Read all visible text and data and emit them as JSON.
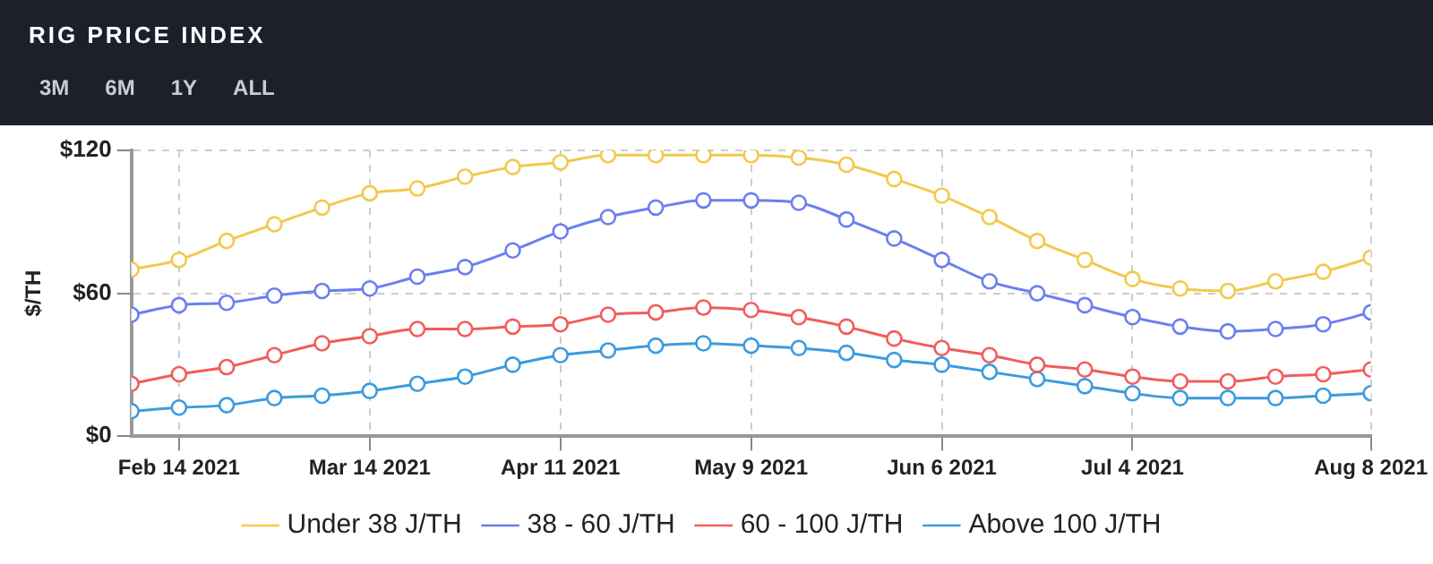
{
  "chart_data": {
    "type": "line",
    "title": "RIG PRICE INDEX",
    "annotations": [
      "3M",
      "6M",
      "1Y",
      "ALL"
    ],
    "ylabel": "$/TH",
    "x": [
      "2021-02-07",
      "2021-02-14",
      "2021-02-21",
      "2021-02-28",
      "2021-03-07",
      "2021-03-14",
      "2021-03-21",
      "2021-03-28",
      "2021-04-04",
      "2021-04-11",
      "2021-04-18",
      "2021-04-25",
      "2021-05-02",
      "2021-05-09",
      "2021-05-16",
      "2021-05-23",
      "2021-05-30",
      "2021-06-06",
      "2021-06-13",
      "2021-06-20",
      "2021-06-27",
      "2021-07-04",
      "2021-07-11",
      "2021-07-18",
      "2021-07-25",
      "2021-08-01",
      "2021-08-08"
    ],
    "xlim": [
      "2021-02-07",
      "2021-08-08"
    ],
    "xticks": [
      {
        "value": "2021-02-14",
        "label": "Feb 14 2021"
      },
      {
        "value": "2021-03-14",
        "label": "Mar 14 2021"
      },
      {
        "value": "2021-04-11",
        "label": "Apr 11 2021"
      },
      {
        "value": "2021-05-09",
        "label": "May 9 2021"
      },
      {
        "value": "2021-06-06",
        "label": "Jun 6 2021"
      },
      {
        "value": "2021-07-04",
        "label": "Jul 4 2021"
      },
      {
        "value": "2021-08-08",
        "label": "Aug 8 2021"
      }
    ],
    "ylim": [
      0,
      120
    ],
    "yticks": [
      {
        "value": 0,
        "label": "$0"
      },
      {
        "value": 60,
        "label": "$60"
      },
      {
        "value": 120,
        "label": "$120"
      }
    ],
    "grid": true,
    "legend": "bottom",
    "marker": "circle",
    "line_style": "solid",
    "series": [
      {
        "name": "Under 38 J/TH",
        "color": "#f2c94c",
        "values": [
          70,
          74,
          82,
          89,
          96,
          102,
          104,
          109,
          113,
          115,
          118,
          118,
          118,
          118,
          117,
          114,
          108,
          101,
          92,
          82,
          74,
          66,
          62,
          61,
          65,
          69,
          75
        ]
      },
      {
        "name": "38 - 60 J/TH",
        "color": "#6b7ff0",
        "values": [
          51,
          55,
          56,
          59,
          61,
          62,
          67,
          71,
          78,
          86,
          92,
          96,
          99,
          99,
          98,
          91,
          83,
          74,
          65,
          60,
          55,
          50,
          46,
          44,
          45,
          47,
          52
        ]
      },
      {
        "name": "60 - 100 J/TH",
        "color": "#f25c5c",
        "values": [
          22,
          26,
          29,
          34,
          39,
          42,
          45,
          45,
          46,
          47,
          51,
          52,
          54,
          53,
          50,
          46,
          41,
          37,
          34,
          30,
          28,
          25,
          23,
          23,
          25,
          26,
          28
        ]
      },
      {
        "name": "Above 100 J/TH",
        "color": "#3b9be0",
        "values": [
          10.5,
          12,
          13,
          16,
          17,
          19,
          22,
          25,
          30,
          34,
          36,
          38,
          39,
          38,
          37,
          35,
          32,
          30,
          27,
          24,
          21,
          18,
          16,
          16,
          16,
          17,
          18
        ]
      }
    ]
  }
}
